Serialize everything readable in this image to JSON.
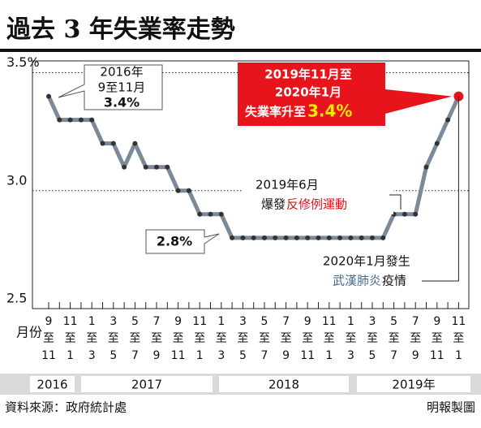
{
  "chart_data": {
    "type": "line",
    "title": "過去 3 年失業率走勢",
    "x_label": "月份",
    "categories": [
      "9至11",
      null,
      "11至1",
      null,
      "1至3",
      null,
      "3至5",
      null,
      "5至7",
      null,
      "7至9",
      null,
      "9至11",
      null,
      "11至1",
      null,
      "1至3",
      null,
      "3至5",
      null,
      "5至7",
      null,
      "7至9",
      null,
      "9至11",
      null,
      "11至1",
      null,
      "1至3",
      null,
      "3至5",
      null,
      "5至7",
      null,
      "7至9",
      null,
      "9至11",
      null,
      "11至1"
    ],
    "years": [
      "2016",
      "2017",
      "2018",
      "2019年"
    ],
    "series": [
      {
        "name": "失業率",
        "color": "#7b8a99",
        "values": [
          3.4,
          3.3,
          3.3,
          3.3,
          3.3,
          3.2,
          3.2,
          3.1,
          3.2,
          3.1,
          3.1,
          3.1,
          3.0,
          3.0,
          2.9,
          2.9,
          2.9,
          2.8,
          2.8,
          2.8,
          2.8,
          2.8,
          2.8,
          2.8,
          2.8,
          2.8,
          2.8,
          2.8,
          2.8,
          2.8,
          2.8,
          2.8,
          2.9,
          2.9,
          2.9,
          3.1,
          3.2,
          3.3,
          3.4
        ]
      }
    ],
    "ylim": [
      2.5,
      3.55
    ],
    "yticks": [
      2.5,
      {
        "value": 3.0,
        "label": "3.0"
      },
      {
        "value": 3.5,
        "label": "3.5%"
      }
    ],
    "annotations": {
      "start": [
        "2016年",
        "9至11月",
        "3.4%"
      ],
      "low": "2.8%",
      "end": [
        "2019年11月至",
        "2020年1月",
        "失業率升至",
        "3.4%"
      ],
      "protest": [
        "2019年6月",
        "爆發",
        "反修例運動"
      ],
      "covid": [
        "2020年1月發生",
        "武漢肺炎",
        "疫情"
      ]
    },
    "source": "資料來源：政府統計處",
    "credit": "明報製圖"
  }
}
